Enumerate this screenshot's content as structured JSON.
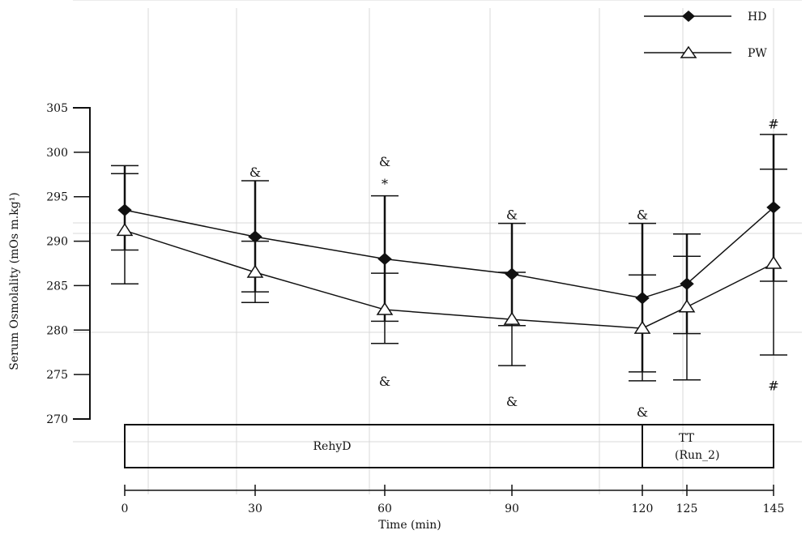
{
  "chart_data": {
    "type": "line",
    "xlabel": "Time (min)",
    "ylabel": "Serum Osmolality (mOs m.kg¹)",
    "ylim": [
      270,
      305
    ],
    "yticks": [
      270,
      275,
      280,
      285,
      290,
      295,
      300,
      305
    ],
    "xticks": [
      "0",
      "30",
      "60",
      "90",
      "120",
      "125",
      "145"
    ],
    "x_positions": [
      0,
      30,
      60,
      90,
      120,
      125,
      145
    ],
    "grid": true,
    "legend_position": "top-right",
    "series": [
      {
        "name": "HD",
        "marker": "filled-diamond",
        "color": "#111111",
        "x": [
          0,
          30,
          60,
          90,
          120,
          125,
          145
        ],
        "y": [
          293.5,
          290.5,
          288.0,
          286.3,
          283.6,
          285.2,
          293.8
        ],
        "error_low": [
          289.0,
          284.3,
          281.0,
          280.5,
          275.3,
          279.6,
          285.5
        ],
        "error_high": [
          298.5,
          296.8,
          295.1,
          292.0,
          292.0,
          290.8,
          302.0
        ]
      },
      {
        "name": "PW",
        "marker": "open-triangle",
        "color": "#111111",
        "x": [
          0,
          30,
          60,
          90,
          120,
          125,
          145
        ],
        "y": [
          291.2,
          286.5,
          282.3,
          281.2,
          280.2,
          282.6,
          287.5
        ],
        "error_low": [
          285.2,
          283.1,
          278.5,
          276.0,
          274.3,
          274.4,
          277.2
        ],
        "error_high": [
          297.6,
          290.0,
          286.4,
          286.5,
          286.2,
          288.3,
          298.1
        ]
      }
    ],
    "annotations": [
      {
        "text": "&",
        "x": 30,
        "y": 297.8
      },
      {
        "text": "&",
        "x": 60,
        "y": 299.0
      },
      {
        "text": "*",
        "x": 60,
        "y": 296.5
      },
      {
        "text": "&",
        "x": 90,
        "y": 293.0
      },
      {
        "text": "&",
        "x": 120,
        "y": 293.0
      },
      {
        "text": "#",
        "x": 145,
        "y": 303.2
      },
      {
        "text": "&",
        "x": 60,
        "y": 274.3
      },
      {
        "text": "&",
        "x": 90,
        "y": 272.0
      },
      {
        "text": "&",
        "x": 120,
        "y": 270.8
      },
      {
        "text": "#",
        "x": 145,
        "y": 273.8
      }
    ],
    "phases": [
      {
        "label": "RehyD",
        "from": 0,
        "to": 120
      },
      {
        "label": "TT\n(Run_2)",
        "from": 120,
        "to": 145
      }
    ]
  }
}
